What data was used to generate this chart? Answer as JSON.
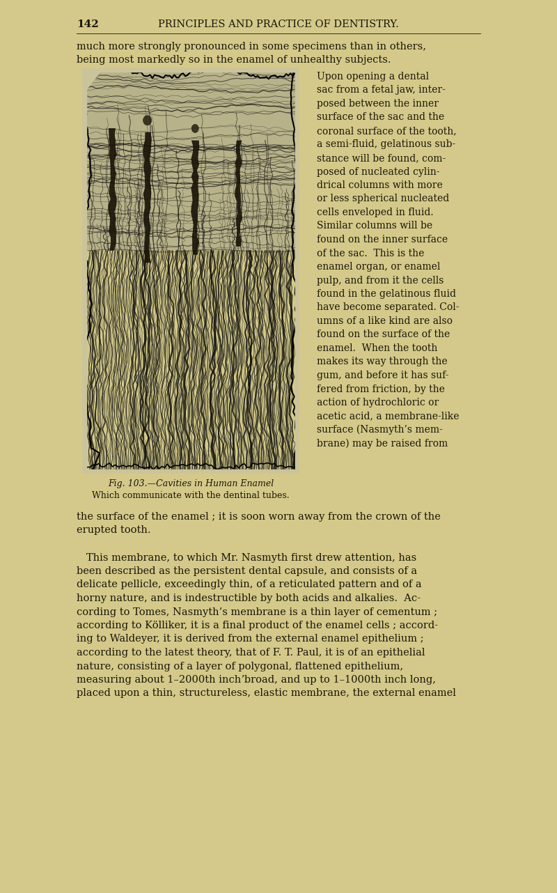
{
  "page_bg": "#d4c98a",
  "text_color": "#1a1608",
  "header_num": "142",
  "header_title": "PRINCIPLES AND PRACTICE OF DENTISTRY.",
  "fig_cap1": "Fig. 103.—Cavities in Human Enamel",
  "fig_cap2": "Which communicate with the dentinal tubes.",
  "para_top": [
    "much more strongly pronounced in some specimens than in others,",
    "being most markedly so in the enamel of unhealthy subjects."
  ],
  "right_col": [
    "Upon opening a dental",
    "sac from a fetal jaw, inter-",
    "posed between the inner",
    "surface of the sac and the",
    "coronal surface of the tooth,",
    "a semi-fluid, gelatinous sub-",
    "stance will be found, com-",
    "posed of nucleated cylin-",
    "drical columns with more",
    "or less spherical nucleated",
    "cells enveloped in fluid.",
    "Similar columns will be",
    "found on the inner surface",
    "of the sac.  This is the",
    "enamel organ, or enamel",
    "pulp, and from it the cells",
    "found in the gelatinous fluid",
    "have become separated. Col-",
    "umns of a like kind are also",
    "found on the surface of the",
    "enamel.  When the tooth",
    "makes its way through the",
    "gum, and before it has suf-",
    "fered from friction, by the",
    "action of hydrochloric or",
    "acetic acid, a membrane-like",
    "surface (Nasmyth’s mem-",
    "brane) may be raised from"
  ],
  "bottom_para": [
    "the surface of the enamel ; it is soon worn away from the crown of the",
    "erupted tooth.",
    "",
    "   This membrane, to which Mr. Nasmyth first drew attention, has",
    "been described as the persistent dental capsule, and consists of a",
    "delicate pellicle, exceedingly thin, of a reticulated pattern and of a",
    "horny nature, and is indestructible by both acids and alkalies.  Ac-",
    "cording to Tomes, Nasmyth’s membrane is a thin layer of cementum ;",
    "according to Kölliker, it is a final product of the enamel cells ; accord-",
    "ing to Waldeyer, it is derived from the external enamel epithelium ;",
    "according to the latest theory, that of F. T. Paul, it is of an epithelial",
    "nature, consisting of a layer of polygonal, flattened epithelium,",
    "measuring about 1–2000th inchʼbroad, and up to 1–1000th inch long,",
    "placed upon a thin, structureless, elastic membrane, the external enamel"
  ]
}
